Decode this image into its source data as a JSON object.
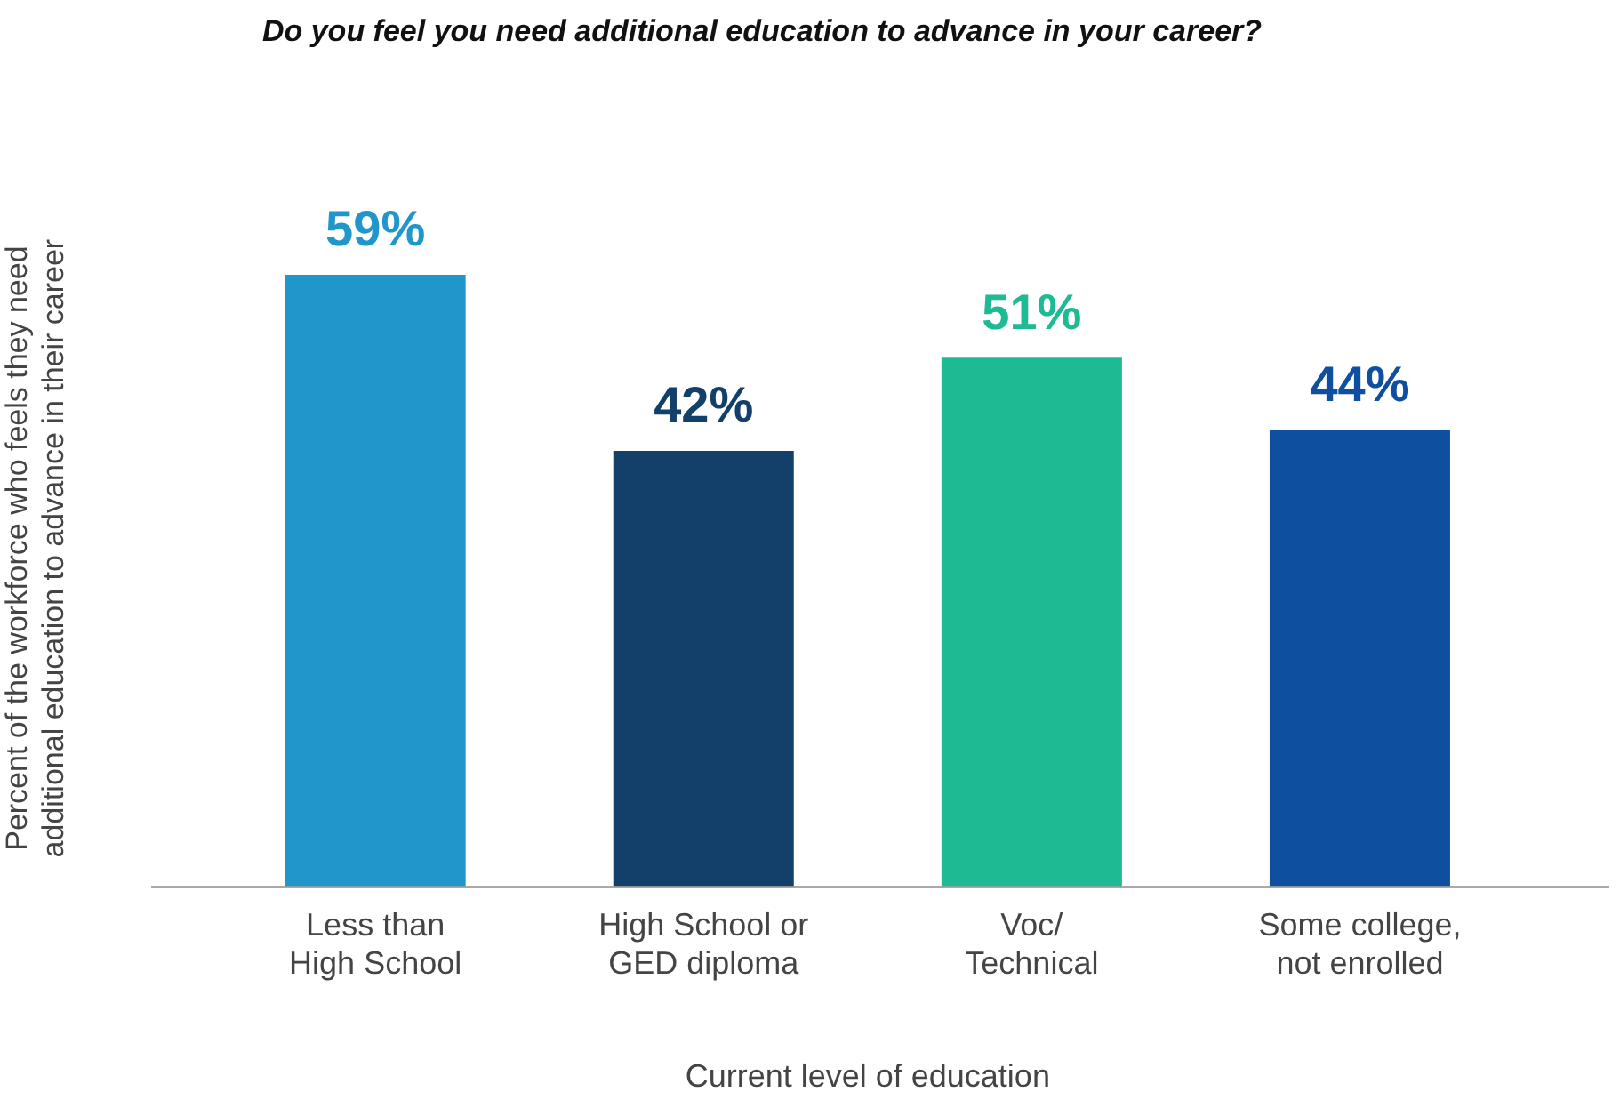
{
  "chart_data": {
    "type": "bar",
    "title": "Do you feel you need additional education to advance in your career?",
    "ylabel": "Percent of the workforce who feels they need\nadditional education to advance in their career",
    "xlabel": "Current level of education",
    "categories": [
      "Less than\nHigh School",
      "High School or\nGED diploma",
      "Voc/\nTechnical",
      "Some college,\nnot enrolled"
    ],
    "values": [
      59,
      42,
      51,
      44
    ],
    "colors": [
      "#2196cb",
      "#12406a",
      "#1dba94",
      "#0e4fa0"
    ],
    "value_labels": [
      "59%",
      "42%",
      "51%",
      "44%"
    ],
    "legend": false,
    "grid": false
  }
}
